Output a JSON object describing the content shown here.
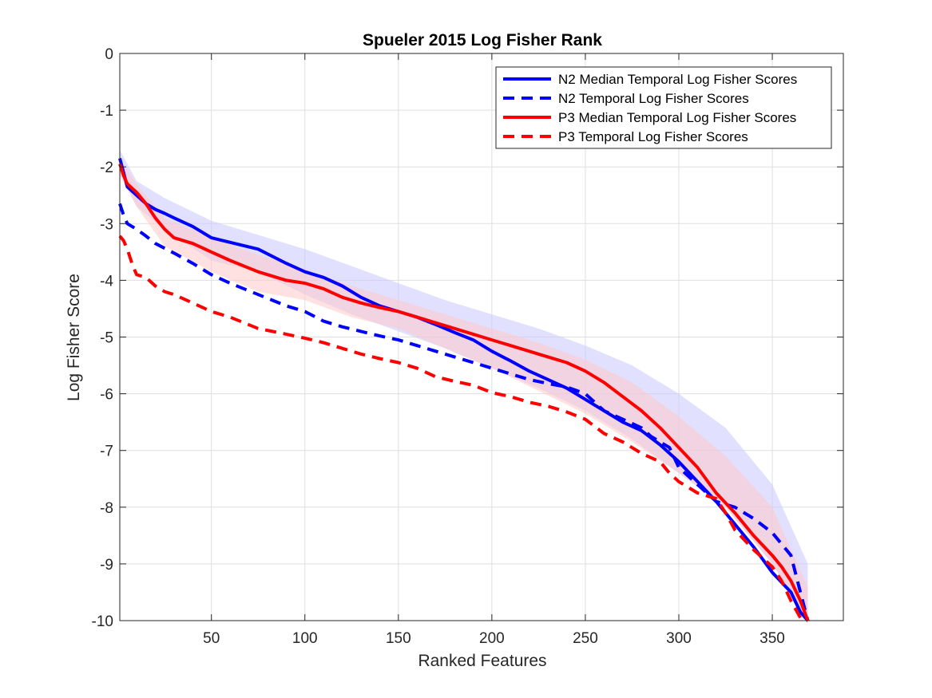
{
  "chart_data": {
    "type": "line",
    "title": "Spueler 2015 Log Fisher Rank",
    "xlabel": "Ranked Features",
    "ylabel": "Log Fisher Score",
    "xlim": [
      1,
      388
    ],
    "ylim": [
      -10,
      0
    ],
    "x_ticks": [
      50,
      100,
      150,
      200,
      250,
      300,
      350
    ],
    "y_ticks": [
      0,
      -1,
      -2,
      -3,
      -4,
      -5,
      -6,
      -7,
      -8,
      -9,
      -10
    ],
    "grid": true,
    "legend_position": "top-right",
    "colors": {
      "n2": "#0000ff",
      "p3": "#ff0000",
      "n2_band": "#c8c8ff",
      "p3_band": "#ffc8c8"
    },
    "series": [
      {
        "name": "N2 Median Temporal Log Fisher Scores",
        "color": "#0000ff",
        "style": "solid",
        "x": [
          1,
          3,
          5,
          10,
          15,
          20,
          25,
          30,
          40,
          50,
          60,
          75,
          90,
          100,
          110,
          120,
          130,
          140,
          150,
          160,
          170,
          180,
          190,
          200,
          210,
          220,
          230,
          240,
          250,
          260,
          270,
          280,
          290,
          300,
          310,
          320,
          330,
          340,
          350,
          360,
          365,
          369
        ],
        "y": [
          -1.85,
          -2.1,
          -2.35,
          -2.5,
          -2.65,
          -2.75,
          -2.82,
          -2.9,
          -3.05,
          -3.25,
          -3.33,
          -3.45,
          -3.7,
          -3.85,
          -3.95,
          -4.1,
          -4.3,
          -4.45,
          -4.55,
          -4.65,
          -4.78,
          -4.92,
          -5.05,
          -5.25,
          -5.42,
          -5.6,
          -5.75,
          -5.9,
          -6.1,
          -6.3,
          -6.5,
          -6.65,
          -6.9,
          -7.2,
          -7.55,
          -7.9,
          -8.3,
          -8.7,
          -9.15,
          -9.5,
          -9.85,
          -10.0
        ]
      },
      {
        "name": "N2 Temporal Log Fisher Scores",
        "color": "#0000ff",
        "style": "dashed",
        "x": [
          1,
          3,
          5,
          10,
          15,
          20,
          30,
          40,
          50,
          60,
          75,
          90,
          100,
          110,
          120,
          130,
          140,
          150,
          160,
          170,
          180,
          190,
          200,
          210,
          220,
          230,
          240,
          250,
          260,
          270,
          280,
          285,
          290,
          295,
          300,
          310,
          320,
          330,
          340,
          350,
          355,
          360,
          365,
          369
        ],
        "y": [
          -2.65,
          -2.85,
          -3.0,
          -3.1,
          -3.22,
          -3.35,
          -3.52,
          -3.7,
          -3.9,
          -4.05,
          -4.25,
          -4.45,
          -4.55,
          -4.72,
          -4.82,
          -4.9,
          -4.98,
          -5.05,
          -5.15,
          -5.25,
          -5.35,
          -5.45,
          -5.55,
          -5.65,
          -5.75,
          -5.82,
          -5.88,
          -6.0,
          -6.3,
          -6.45,
          -6.6,
          -6.75,
          -6.85,
          -6.95,
          -7.3,
          -7.6,
          -7.9,
          -8.0,
          -8.2,
          -8.45,
          -8.65,
          -8.85,
          -9.5,
          -10.0
        ]
      },
      {
        "name": "P3 Median Temporal Log Fisher Scores",
        "color": "#ff0000",
        "style": "solid",
        "x": [
          1,
          3,
          5,
          10,
          15,
          20,
          25,
          30,
          40,
          50,
          60,
          75,
          90,
          100,
          110,
          120,
          130,
          140,
          150,
          160,
          170,
          180,
          190,
          200,
          210,
          220,
          230,
          240,
          250,
          260,
          270,
          280,
          290,
          300,
          310,
          320,
          330,
          340,
          350,
          355,
          360,
          365,
          369
        ],
        "y": [
          -1.95,
          -2.15,
          -2.3,
          -2.45,
          -2.65,
          -2.9,
          -3.1,
          -3.25,
          -3.35,
          -3.5,
          -3.65,
          -3.85,
          -4.0,
          -4.05,
          -4.15,
          -4.3,
          -4.4,
          -4.48,
          -4.55,
          -4.65,
          -4.75,
          -4.85,
          -4.95,
          -5.05,
          -5.15,
          -5.25,
          -5.35,
          -5.45,
          -5.6,
          -5.8,
          -6.05,
          -6.3,
          -6.6,
          -6.95,
          -7.3,
          -7.75,
          -8.1,
          -8.5,
          -8.85,
          -9.05,
          -9.3,
          -9.65,
          -10.0
        ]
      },
      {
        "name": "P3 Temporal Log Fisher Scores",
        "color": "#ff0000",
        "style": "dashed",
        "x": [
          1,
          3,
          5,
          8,
          10,
          15,
          20,
          25,
          30,
          40,
          50,
          60,
          75,
          90,
          100,
          110,
          120,
          130,
          140,
          150,
          160,
          170,
          180,
          190,
          200,
          210,
          220,
          230,
          240,
          250,
          260,
          270,
          280,
          290,
          295,
          300,
          310,
          320,
          325,
          330,
          340,
          350,
          355,
          360,
          365,
          369
        ],
        "y": [
          -3.22,
          -3.3,
          -3.45,
          -3.75,
          -3.9,
          -3.95,
          -4.1,
          -4.2,
          -4.25,
          -4.4,
          -4.55,
          -4.65,
          -4.85,
          -4.95,
          -5.02,
          -5.1,
          -5.2,
          -5.3,
          -5.38,
          -5.45,
          -5.55,
          -5.7,
          -5.78,
          -5.85,
          -5.98,
          -6.05,
          -6.15,
          -6.22,
          -6.32,
          -6.45,
          -6.7,
          -6.85,
          -7.05,
          -7.2,
          -7.4,
          -7.55,
          -7.75,
          -7.85,
          -8.1,
          -8.4,
          -8.75,
          -9.05,
          -9.3,
          -9.65,
          -9.95,
          -10.0
        ]
      }
    ],
    "bands": [
      {
        "series": "N2 Median Temporal Log Fisher Scores",
        "color": "#c8c8ff",
        "x": [
          1,
          10,
          25,
          50,
          75,
          100,
          125,
          150,
          175,
          200,
          225,
          250,
          275,
          300,
          325,
          350,
          369
        ],
        "upper": [
          -1.7,
          -2.25,
          -2.55,
          -2.95,
          -3.2,
          -3.45,
          -3.75,
          -4.05,
          -4.35,
          -4.6,
          -4.85,
          -5.15,
          -5.5,
          -6.0,
          -6.6,
          -7.6,
          -9.0
        ],
        "lower": [
          -2.1,
          -2.7,
          -3.1,
          -3.65,
          -3.85,
          -4.25,
          -4.6,
          -4.9,
          -5.2,
          -5.55,
          -5.9,
          -6.3,
          -6.8,
          -7.4,
          -8.0,
          -9.0,
          -10.0
        ]
      },
      {
        "series": "P3 Median Temporal Log Fisher Scores",
        "color": "#ffc8c8",
        "x": [
          1,
          10,
          25,
          50,
          75,
          100,
          125,
          150,
          175,
          200,
          225,
          250,
          275,
          300,
          325,
          350,
          369
        ],
        "upper": [
          -1.85,
          -2.3,
          -2.9,
          -3.25,
          -3.55,
          -3.8,
          -4.1,
          -4.35,
          -4.6,
          -4.85,
          -5.1,
          -5.4,
          -5.8,
          -6.4,
          -7.1,
          -8.0,
          -9.4
        ],
        "lower": [
          -2.15,
          -2.7,
          -3.4,
          -3.85,
          -4.2,
          -4.35,
          -4.65,
          -4.85,
          -5.2,
          -5.55,
          -5.95,
          -6.35,
          -6.85,
          -7.4,
          -8.0,
          -9.0,
          -10.0
        ]
      }
    ]
  }
}
